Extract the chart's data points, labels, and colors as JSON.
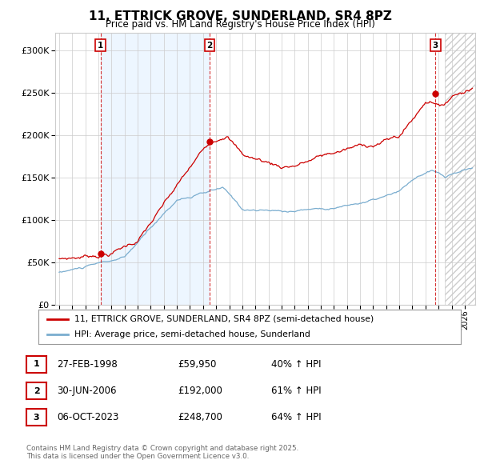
{
  "title": "11, ETTRICK GROVE, SUNDERLAND, SR4 8PZ",
  "subtitle": "Price paid vs. HM Land Registry's House Price Index (HPI)",
  "ylim": [
    0,
    320000
  ],
  "yticks": [
    0,
    50000,
    100000,
    150000,
    200000,
    250000,
    300000
  ],
  "ytick_labels": [
    "£0",
    "£50K",
    "£100K",
    "£150K",
    "£200K",
    "£250K",
    "£300K"
  ],
  "xlim_start": 1994.7,
  "xlim_end": 2026.8,
  "xticks": [
    1995,
    1996,
    1997,
    1998,
    1999,
    2000,
    2001,
    2002,
    2003,
    2004,
    2005,
    2006,
    2007,
    2008,
    2009,
    2010,
    2011,
    2012,
    2013,
    2014,
    2015,
    2016,
    2017,
    2018,
    2019,
    2020,
    2021,
    2022,
    2023,
    2024,
    2025,
    2026
  ],
  "sale_dates": [
    1998.16,
    2006.5,
    2023.76
  ],
  "sale_prices": [
    59950,
    192000,
    248700
  ],
  "sale_labels": [
    "1",
    "2",
    "3"
  ],
  "legend_entries": [
    "11, ETTRICK GROVE, SUNDERLAND, SR4 8PZ (semi-detached house)",
    "HPI: Average price, semi-detached house, Sunderland"
  ],
  "table_rows": [
    [
      "1",
      "27-FEB-1998",
      "£59,950",
      "40% ↑ HPI"
    ],
    [
      "2",
      "30-JUN-2006",
      "£192,000",
      "61% ↑ HPI"
    ],
    [
      "3",
      "06-OCT-2023",
      "£248,700",
      "64% ↑ HPI"
    ]
  ],
  "footer": "Contains HM Land Registry data © Crown copyright and database right 2025.\nThis data is licensed under the Open Government Licence v3.0.",
  "red_line_color": "#cc0000",
  "blue_line_color": "#7aadcf",
  "shade_color": "#ddeeff",
  "vline_color": "#cc0000",
  "grid_color": "#cccccc",
  "background_color": "#ffffff"
}
